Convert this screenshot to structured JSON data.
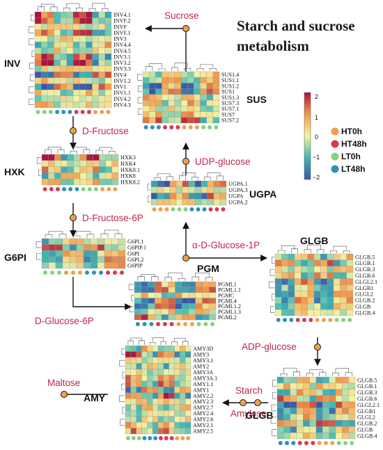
{
  "title": {
    "line1": "Starch and sucrose",
    "line2": "metabolism"
  },
  "metabolites": {
    "sucrose": "Sucrose",
    "d_fructose": "D-Fructose",
    "udp_glucose": "UDP-glucose",
    "d_fructose_6p": "D-Fructose-6P",
    "alpha_d_glucose_1p": "α-D-Glucose-1P",
    "d_glucose_6p": "D-Glucose-6P",
    "adp_glucose": "ADP-glucose",
    "maltose": "Maltose",
    "starch": "Starch",
    "amylose": "Amylose"
  },
  "enzymes": {
    "inv": "INV",
    "sus": "SUS",
    "hxk": "HXK",
    "ugpa": "UGPA",
    "g6pi": "G6PI",
    "pgm": "PGM",
    "glgb_top": "GLGB",
    "glgb_bottom": "GLGB",
    "amy": "AMY"
  },
  "colorbar": {
    "ticks": [
      "2",
      "1",
      "0",
      "−1",
      "−2"
    ]
  },
  "legend": [
    {
      "label": "HT0h",
      "color": "#f0a04b"
    },
    {
      "label": "HT48h",
      "color": "#d63a4a"
    },
    {
      "label": "LT0h",
      "color": "#86d07e"
    },
    {
      "label": "LT48h",
      "color": "#2f8fb8"
    }
  ],
  "heatmaps": {
    "inv": {
      "genes": [
        "INV4.1",
        "INVF.2",
        "INVF",
        "INVF.1",
        "INV3",
        "INV4.4",
        "INV4.5",
        "INV3.1",
        "INV3.2",
        "INV3.3",
        "INV4",
        "INV1.2",
        "INV1",
        "INV1.1",
        "INV4.2",
        "INV4.3"
      ],
      "samples": [
        "LT0h",
        "LT0h",
        "LT0h",
        "LT48h",
        "LT48h",
        "LT48h",
        "HT48h",
        "HT48h",
        "HT48h",
        "HT0h",
        "HT0h",
        "HT0h"
      ]
    },
    "sus": {
      "genes": [
        "SUS1.4",
        "SUS1.1",
        "SUS1.2",
        "SUS1",
        "SUS1.3",
        "SUS7.3",
        "SUS7.1",
        "SUS7",
        "SUS7.2"
      ],
      "samples": [
        "LT48h",
        "LT48h",
        "LT48h",
        "HT48h",
        "HT48h",
        "HT48h",
        "HT0h",
        "HT0h",
        "HT0h",
        "LT0h",
        "LT0h",
        "LT0h"
      ]
    },
    "hxk": {
      "genes": [
        "HXK3",
        "HXK4",
        "HXK8.1",
        "HXK8",
        "HXK8.2"
      ],
      "samples": [
        "HT48h",
        "HT48h",
        "HT48h",
        "LT48h",
        "LT48h",
        "LT48h",
        "LT0h",
        "LT0h",
        "LT0h",
        "HT0h",
        "HT0h",
        "HT0h"
      ]
    },
    "ugpa": {
      "genes": [
        "UGPA.1",
        "UGPA.3",
        "UGPA",
        "UGPA.2"
      ],
      "samples": [
        "HT0h",
        "HT0h",
        "HT0h",
        "LT0h",
        "LT0h",
        "LT0h",
        "LT48h",
        "LT48h",
        "LT48h",
        "HT48h",
        "HT48h",
        "HT48h"
      ]
    },
    "g6pi": {
      "genes": [
        "G6PI.1",
        "G6PIP.1",
        "G6PI",
        "G6PI.2",
        "G6PIP"
      ],
      "samples": [
        "LT0h",
        "LT0h",
        "LT0h",
        "HT0h",
        "HT0h",
        "HT0h",
        "LT48h",
        "LT48h",
        "LT48h",
        "HT48h",
        "HT48h",
        "HT48h"
      ]
    },
    "pgm": {
      "genes": [
        "PGML1",
        "PGML1.1",
        "PGMC",
        "PGML4",
        "PGML1.2",
        "PGML1.3",
        "PGML2"
      ],
      "samples": [
        "LT48h",
        "LT48h",
        "LT48h",
        "HT48h",
        "HT48h",
        "HT48h",
        "HT0h",
        "HT0h",
        "HT0h",
        "LT0h",
        "LT0h",
        "LT0h"
      ]
    },
    "glgb_top": {
      "genes": [
        "GLGB.5",
        "GLGB.1",
        "GLGB.3",
        "GLGB.6",
        "GLGL2.1",
        "GLGB1",
        "GLGL2",
        "GLGB.2",
        "GLGB",
        "GLGB.4"
      ],
      "samples": [
        "LT48h",
        "LT48h",
        "LT48h",
        "HT48h",
        "HT48h",
        "HT48h",
        "HT0h",
        "HT0h",
        "HT0h",
        "LT0h",
        "LT0h",
        "LT0h"
      ]
    },
    "glgb_bottom": {
      "genes": [
        "GLGB.5",
        "GLGB.1",
        "GLGB.3",
        "GLGB.6",
        "GLGL2.1",
        "GLGB1",
        "GLGL2",
        "GLGB.2",
        "GLGB",
        "GLGB.4"
      ],
      "samples": [
        "LT48h",
        "LT48h",
        "LT48h",
        "HT48h",
        "HT48h",
        "HT48h",
        "HT0h",
        "HT0h",
        "HT0h",
        "LT0h",
        "LT0h",
        "LT0h"
      ]
    },
    "amy": {
      "genes": [
        "AMY3D",
        "AMY3",
        "AMY3.1",
        "AMY2",
        "AMY3A",
        "AMY3A.1",
        "AMY1.1",
        "AMY1",
        "AMY2.2",
        "AMY2.3",
        "AMY2.7",
        "AMY2.4",
        "AMY2.6",
        "AMY2.1",
        "AMY2.5"
      ],
      "samples": [
        "LT0h",
        "LT0h",
        "LT0h",
        "LT48h",
        "LT48h",
        "LT48h",
        "HT48h",
        "HT48h",
        "HT48h",
        "HT0h",
        "HT0h",
        "HT0h"
      ]
    }
  }
}
